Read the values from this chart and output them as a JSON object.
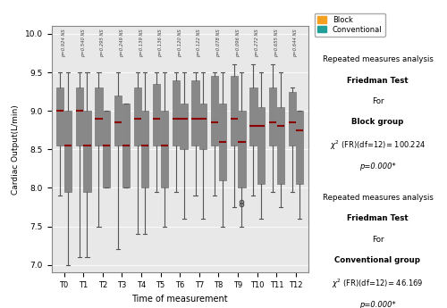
{
  "timepoints": [
    "T0",
    "T1",
    "T2",
    "T3",
    "T4",
    "T5",
    "T6",
    "T7",
    "T8",
    "T9",
    "T10",
    "T11",
    "T12"
  ],
  "p_values": [
    "p=0.924 NS",
    "p=0.540 NS",
    "p=0.295 NS",
    "p=0.249 NS",
    "p=0.139 NS",
    "p=0.136 NS",
    "p=0.120 NS",
    "p=0.122 NS",
    "p=0.078 NS",
    "p=0.096 NS",
    "p=0.272 NS",
    "p=0.655 NS",
    "p=0.644 NS"
  ],
  "block_color": "#F5A020",
  "conv_color": "#20A098",
  "block_boxes": [
    {
      "q1": 8.55,
      "median": 9.0,
      "q3": 9.3,
      "whislo": 7.9,
      "whishi": 9.5,
      "fliers": []
    },
    {
      "q1": 8.55,
      "median": 9.0,
      "q3": 9.3,
      "whislo": 7.1,
      "whishi": 9.5,
      "fliers": []
    },
    {
      "q1": 8.55,
      "median": 8.9,
      "q3": 9.3,
      "whislo": 7.5,
      "whishi": 9.5,
      "fliers": []
    },
    {
      "q1": 8.55,
      "median": 8.85,
      "q3": 9.2,
      "whislo": 7.2,
      "whishi": 9.5,
      "fliers": []
    },
    {
      "q1": 8.55,
      "median": 8.9,
      "q3": 9.3,
      "whislo": 7.4,
      "whishi": 9.5,
      "fliers": []
    },
    {
      "q1": 8.55,
      "median": 8.9,
      "q3": 9.35,
      "whislo": 7.95,
      "whishi": 9.5,
      "fliers": []
    },
    {
      "q1": 8.55,
      "median": 8.9,
      "q3": 9.4,
      "whislo": 7.95,
      "whishi": 9.5,
      "fliers": []
    },
    {
      "q1": 8.55,
      "median": 8.9,
      "q3": 9.4,
      "whislo": 7.9,
      "whishi": 9.5,
      "fliers": []
    },
    {
      "q1": 8.55,
      "median": 8.85,
      "q3": 9.45,
      "whislo": 7.9,
      "whishi": 9.5,
      "fliers": []
    },
    {
      "q1": 8.55,
      "median": 8.9,
      "q3": 9.45,
      "whislo": 7.75,
      "whishi": 9.6,
      "fliers": []
    },
    {
      "q1": 8.55,
      "median": 8.8,
      "q3": 9.3,
      "whislo": 7.9,
      "whishi": 9.6,
      "fliers": []
    },
    {
      "q1": 8.55,
      "median": 8.85,
      "q3": 9.3,
      "whislo": 7.95,
      "whishi": 9.6,
      "fliers": []
    },
    {
      "q1": 8.55,
      "median": 8.85,
      "q3": 9.25,
      "whislo": 7.95,
      "whishi": 9.3,
      "fliers": []
    }
  ],
  "conv_boxes": [
    {
      "q1": 7.95,
      "median": 8.55,
      "q3": 9.0,
      "whislo": 7.0,
      "whishi": 9.5,
      "fliers": []
    },
    {
      "q1": 7.95,
      "median": 8.55,
      "q3": 9.0,
      "whislo": 7.1,
      "whishi": 9.5,
      "fliers": []
    },
    {
      "q1": 8.0,
      "median": 8.55,
      "q3": 9.0,
      "whislo": 8.0,
      "whishi": 9.0,
      "fliers": []
    },
    {
      "q1": 8.0,
      "median": 8.55,
      "q3": 9.1,
      "whislo": 8.0,
      "whishi": 9.1,
      "fliers": []
    },
    {
      "q1": 8.0,
      "median": 8.55,
      "q3": 9.0,
      "whislo": 7.4,
      "whishi": 9.5,
      "fliers": []
    },
    {
      "q1": 8.0,
      "median": 8.55,
      "q3": 9.0,
      "whislo": 7.5,
      "whishi": 9.5,
      "fliers": []
    },
    {
      "q1": 8.5,
      "median": 8.9,
      "q3": 9.1,
      "whislo": 7.6,
      "whishi": 9.5,
      "fliers": []
    },
    {
      "q1": 8.5,
      "median": 8.9,
      "q3": 9.1,
      "whislo": 7.6,
      "whishi": 9.5,
      "fliers": []
    },
    {
      "q1": 8.1,
      "median": 8.6,
      "q3": 9.1,
      "whislo": 7.5,
      "whishi": 9.5,
      "fliers": []
    },
    {
      "q1": 8.0,
      "median": 8.6,
      "q3": 9.0,
      "whislo": 7.5,
      "whishi": 9.5,
      "fliers": [
        7.82,
        7.78
      ]
    },
    {
      "q1": 8.05,
      "median": 8.8,
      "q3": 9.05,
      "whislo": 7.6,
      "whishi": 9.5,
      "fliers": []
    },
    {
      "q1": 8.05,
      "median": 8.8,
      "q3": 9.05,
      "whislo": 7.75,
      "whishi": 9.5,
      "fliers": []
    },
    {
      "q1": 8.05,
      "median": 8.75,
      "q3": 9.0,
      "whislo": 7.6,
      "whishi": 9.0,
      "fliers": []
    }
  ],
  "ylabel": "Cardiac Output(L/min)",
  "xlabel": "Time of measurement",
  "ylim": [
    6.9,
    10.1
  ],
  "yticks": [
    7.0,
    7.5,
    8.0,
    8.5,
    9.0,
    9.5,
    10.0
  ],
  "bg_color": "#E8E8E8",
  "box_width": 0.38,
  "block_label": "Block",
  "conv_label": "Conventional"
}
